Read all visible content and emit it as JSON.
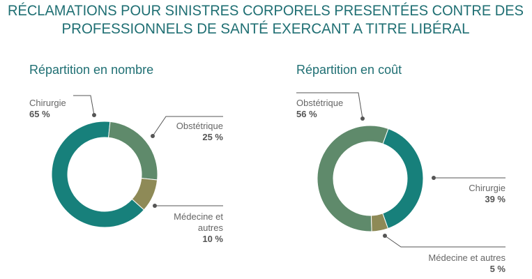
{
  "title": [
    "RÉCLAMATIONS POUR SINISTRES CORPORELS PRESENTÉES CONTRE DES",
    "PROFESSIONNELS DE SANTÉ EXERCANT A TITRE LIBÉRAL"
  ],
  "chart_data": [
    {
      "type": "pie",
      "title": "Répartition en nombre",
      "categories": [
        "Chirurgie",
        "Obstétrique",
        "Médecine et autres"
      ],
      "values": [
        65,
        25,
        10
      ],
      "value_labels": [
        "65 %",
        "25 %",
        "10 %"
      ],
      "colors": [
        "#17807b",
        "#5f8a6b",
        "#8e8a57"
      ]
    },
    {
      "type": "pie",
      "title": "Répartition en coût",
      "categories": [
        "Obstétrique",
        "Chirurgie",
        "Médecine et autres"
      ],
      "values": [
        56,
        39,
        5
      ],
      "value_labels": [
        "56 %",
        "39 %",
        "5 %"
      ],
      "colors": [
        "#5f8a6b",
        "#17807b",
        "#8e8a57"
      ]
    }
  ]
}
